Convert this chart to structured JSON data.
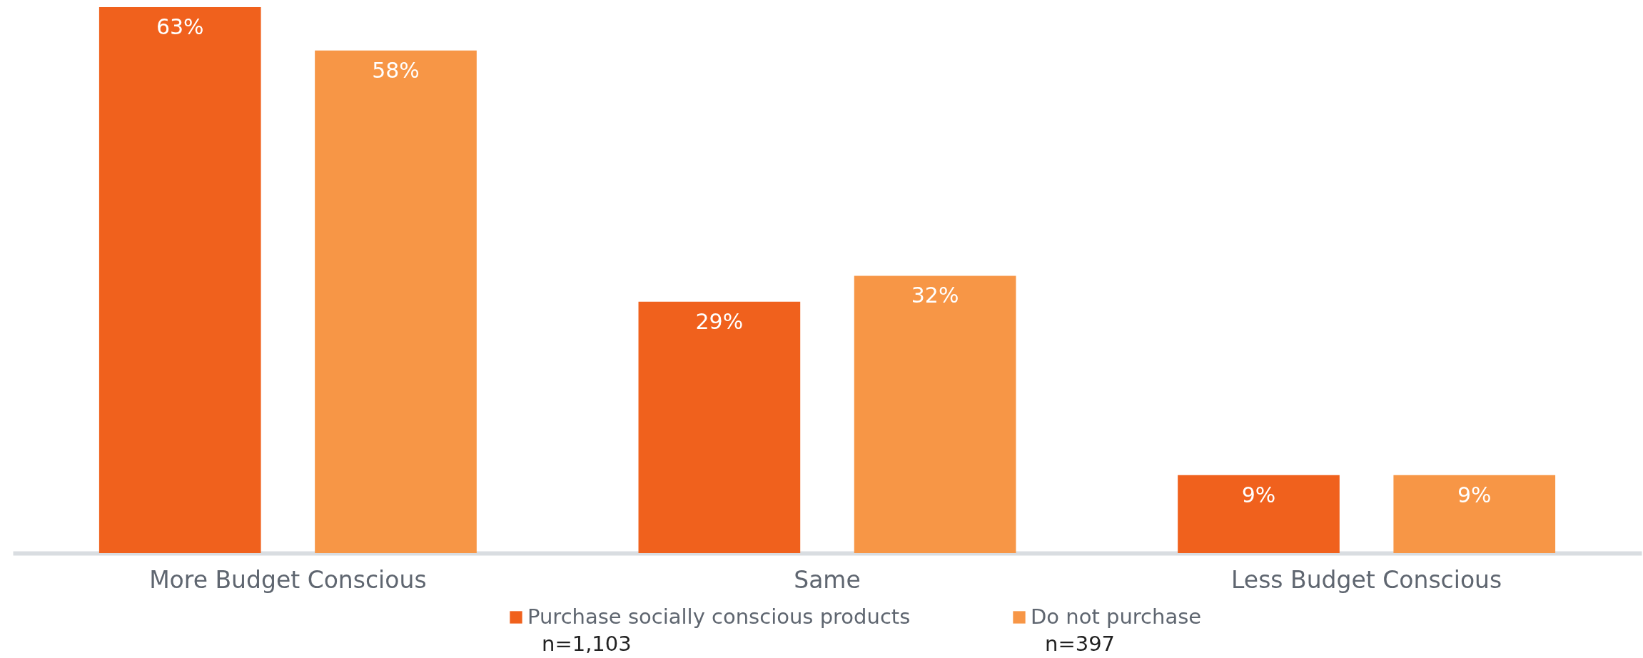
{
  "chart_data": {
    "type": "bar",
    "categories": [
      "More Budget Conscious",
      "Same",
      "Less Budget Conscious"
    ],
    "series": [
      {
        "name": "Purchase socially conscious products",
        "color": "#f0611d",
        "values": [
          63,
          29,
          9
        ],
        "value_labels": [
          "63%",
          "29%",
          "9%"
        ]
      },
      {
        "name": "Do not purchase",
        "color": "#f79646",
        "values": [
          58,
          32,
          9
        ],
        "value_labels": [
          "58%",
          "32%",
          "9%"
        ]
      }
    ],
    "annotations": [
      "n=1,103",
      "n=397"
    ],
    "legend": "bottom",
    "grid": false
  }
}
